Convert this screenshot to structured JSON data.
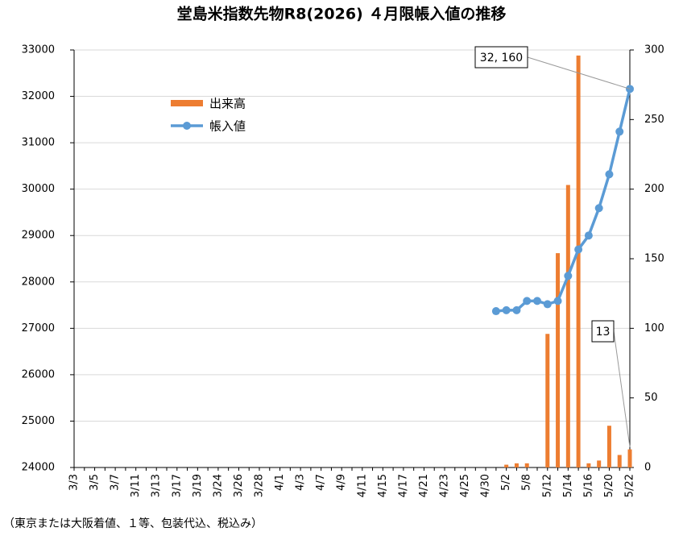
{
  "chart_data": {
    "type": "bar-line",
    "title": "堂島米指数先物R8(2026) ４月限帳入値の推移",
    "footnote": "（東京または大阪着値、１等、包装代込、税込み）",
    "categories": [
      "3/3",
      null,
      "3/5",
      null,
      "3/7",
      null,
      "3/11",
      null,
      "3/13",
      null,
      "3/17",
      null,
      "3/19",
      null,
      "3/24",
      null,
      "3/26",
      null,
      "3/28",
      null,
      "4/1",
      null,
      "4/3",
      null,
      "4/7",
      null,
      "4/9",
      null,
      "4/11",
      null,
      "4/15",
      null,
      "4/17",
      null,
      "4/21",
      null,
      "4/23",
      null,
      "4/25",
      null,
      "4/30",
      null,
      "5/2",
      null,
      "5/8",
      null,
      "5/12",
      null,
      "5/14",
      null,
      "5/16",
      null,
      "5/20",
      null,
      "5/22"
    ],
    "series": [
      {
        "name": "出来高",
        "type": "bar",
        "axis": "y2",
        "color": "#ed7d31",
        "values": [
          null,
          null,
          null,
          null,
          null,
          null,
          null,
          null,
          null,
          null,
          null,
          null,
          null,
          null,
          null,
          null,
          null,
          null,
          null,
          null,
          null,
          null,
          null,
          null,
          null,
          null,
          null,
          null,
          null,
          null,
          null,
          null,
          null,
          null,
          null,
          null,
          null,
          null,
          null,
          null,
          null,
          null,
          2,
          3,
          3,
          null,
          96,
          154,
          203,
          296,
          3,
          5,
          30,
          9,
          13
        ],
        "value_labels": [
          null,
          null,
          null,
          null,
          null,
          null,
          null,
          null,
          null,
          null,
          null,
          null,
          null,
          null,
          null,
          null,
          null,
          null,
          null,
          null,
          null,
          null,
          null,
          null,
          null,
          null,
          null,
          null,
          null,
          null,
          null,
          null,
          null,
          null,
          null,
          null,
          null,
          null,
          null,
          null,
          null,
          null,
          null,
          null,
          null,
          null,
          null,
          null,
          null,
          null,
          null,
          null,
          null,
          null,
          "13"
        ]
      },
      {
        "name": "帳入値",
        "type": "line",
        "axis": "y",
        "color": "#5b9bd5",
        "values": [
          null,
          null,
          null,
          null,
          null,
          null,
          null,
          null,
          null,
          null,
          null,
          null,
          null,
          null,
          null,
          null,
          null,
          null,
          null,
          null,
          null,
          null,
          null,
          null,
          null,
          null,
          null,
          null,
          null,
          null,
          null,
          null,
          null,
          null,
          null,
          null,
          null,
          null,
          null,
          null,
          null,
          27370,
          27390,
          27390,
          27590,
          27590,
          27520,
          27590,
          28130,
          28700,
          29000,
          29590,
          30320,
          31240,
          32160
        ],
        "value_labels": [
          null,
          null,
          null,
          null,
          null,
          null,
          null,
          null,
          null,
          null,
          null,
          null,
          null,
          null,
          null,
          null,
          null,
          null,
          null,
          null,
          null,
          null,
          null,
          null,
          null,
          null,
          null,
          null,
          null,
          null,
          null,
          null,
          null,
          null,
          null,
          null,
          null,
          null,
          null,
          null,
          null,
          null,
          null,
          null,
          null,
          null,
          null,
          null,
          null,
          null,
          null,
          null,
          null,
          null,
          "32, 160"
        ]
      }
    ],
    "ylim": [
      24000,
      33000
    ],
    "yticks": [
      24000,
      25000,
      26000,
      27000,
      28000,
      29000,
      30000,
      31000,
      32000,
      33000
    ],
    "y2lim": [
      0,
      300
    ],
    "y2ticks": [
      0,
      50,
      100,
      150,
      200,
      250,
      300
    ],
    "grid": true,
    "legend": "upper left"
  }
}
